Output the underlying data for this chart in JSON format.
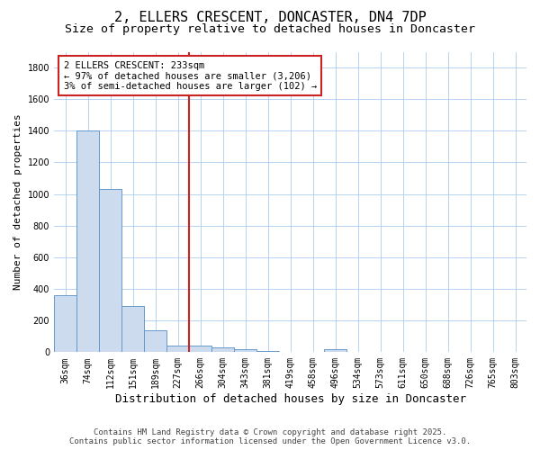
{
  "title": "2, ELLERS CRESCENT, DONCASTER, DN4 7DP",
  "subtitle": "Size of property relative to detached houses in Doncaster",
  "xlabel": "Distribution of detached houses by size in Doncaster",
  "ylabel": "Number of detached properties",
  "categories": [
    "36sqm",
    "74sqm",
    "112sqm",
    "151sqm",
    "189sqm",
    "227sqm",
    "266sqm",
    "304sqm",
    "343sqm",
    "381sqm",
    "419sqm",
    "458sqm",
    "496sqm",
    "534sqm",
    "573sqm",
    "611sqm",
    "650sqm",
    "688sqm",
    "726sqm",
    "765sqm",
    "803sqm"
  ],
  "values": [
    360,
    1400,
    1030,
    290,
    140,
    40,
    40,
    30,
    20,
    10,
    0,
    0,
    20,
    0,
    0,
    0,
    0,
    0,
    0,
    0,
    0
  ],
  "bar_color": "#ccdcee",
  "bar_edge_color": "#6699cc",
  "vline_x": 5.5,
  "vline_color": "#cc2222",
  "annotation_line1": "2 ELLERS CRESCENT: 233sqm",
  "annotation_line2": "← 97% of detached houses are smaller (3,206)",
  "annotation_line3": "3% of semi-detached houses are larger (102) →",
  "annotation_box_facecolor": "#ffffff",
  "annotation_box_edgecolor": "#cc2222",
  "ylim": [
    0,
    1900
  ],
  "yticks": [
    0,
    200,
    400,
    600,
    800,
    1000,
    1200,
    1400,
    1600,
    1800
  ],
  "plot_bg_color": "#ffffff",
  "fig_bg_color": "#ffffff",
  "grid_color": "#aaccee",
  "footer_line1": "Contains HM Land Registry data © Crown copyright and database right 2025.",
  "footer_line2": "Contains public sector information licensed under the Open Government Licence v3.0.",
  "title_fontsize": 11,
  "subtitle_fontsize": 9.5,
  "axis_label_fontsize": 9,
  "tick_fontsize": 7,
  "annotation_fontsize": 7.5,
  "footer_fontsize": 6.5,
  "ylabel_fontsize": 8
}
